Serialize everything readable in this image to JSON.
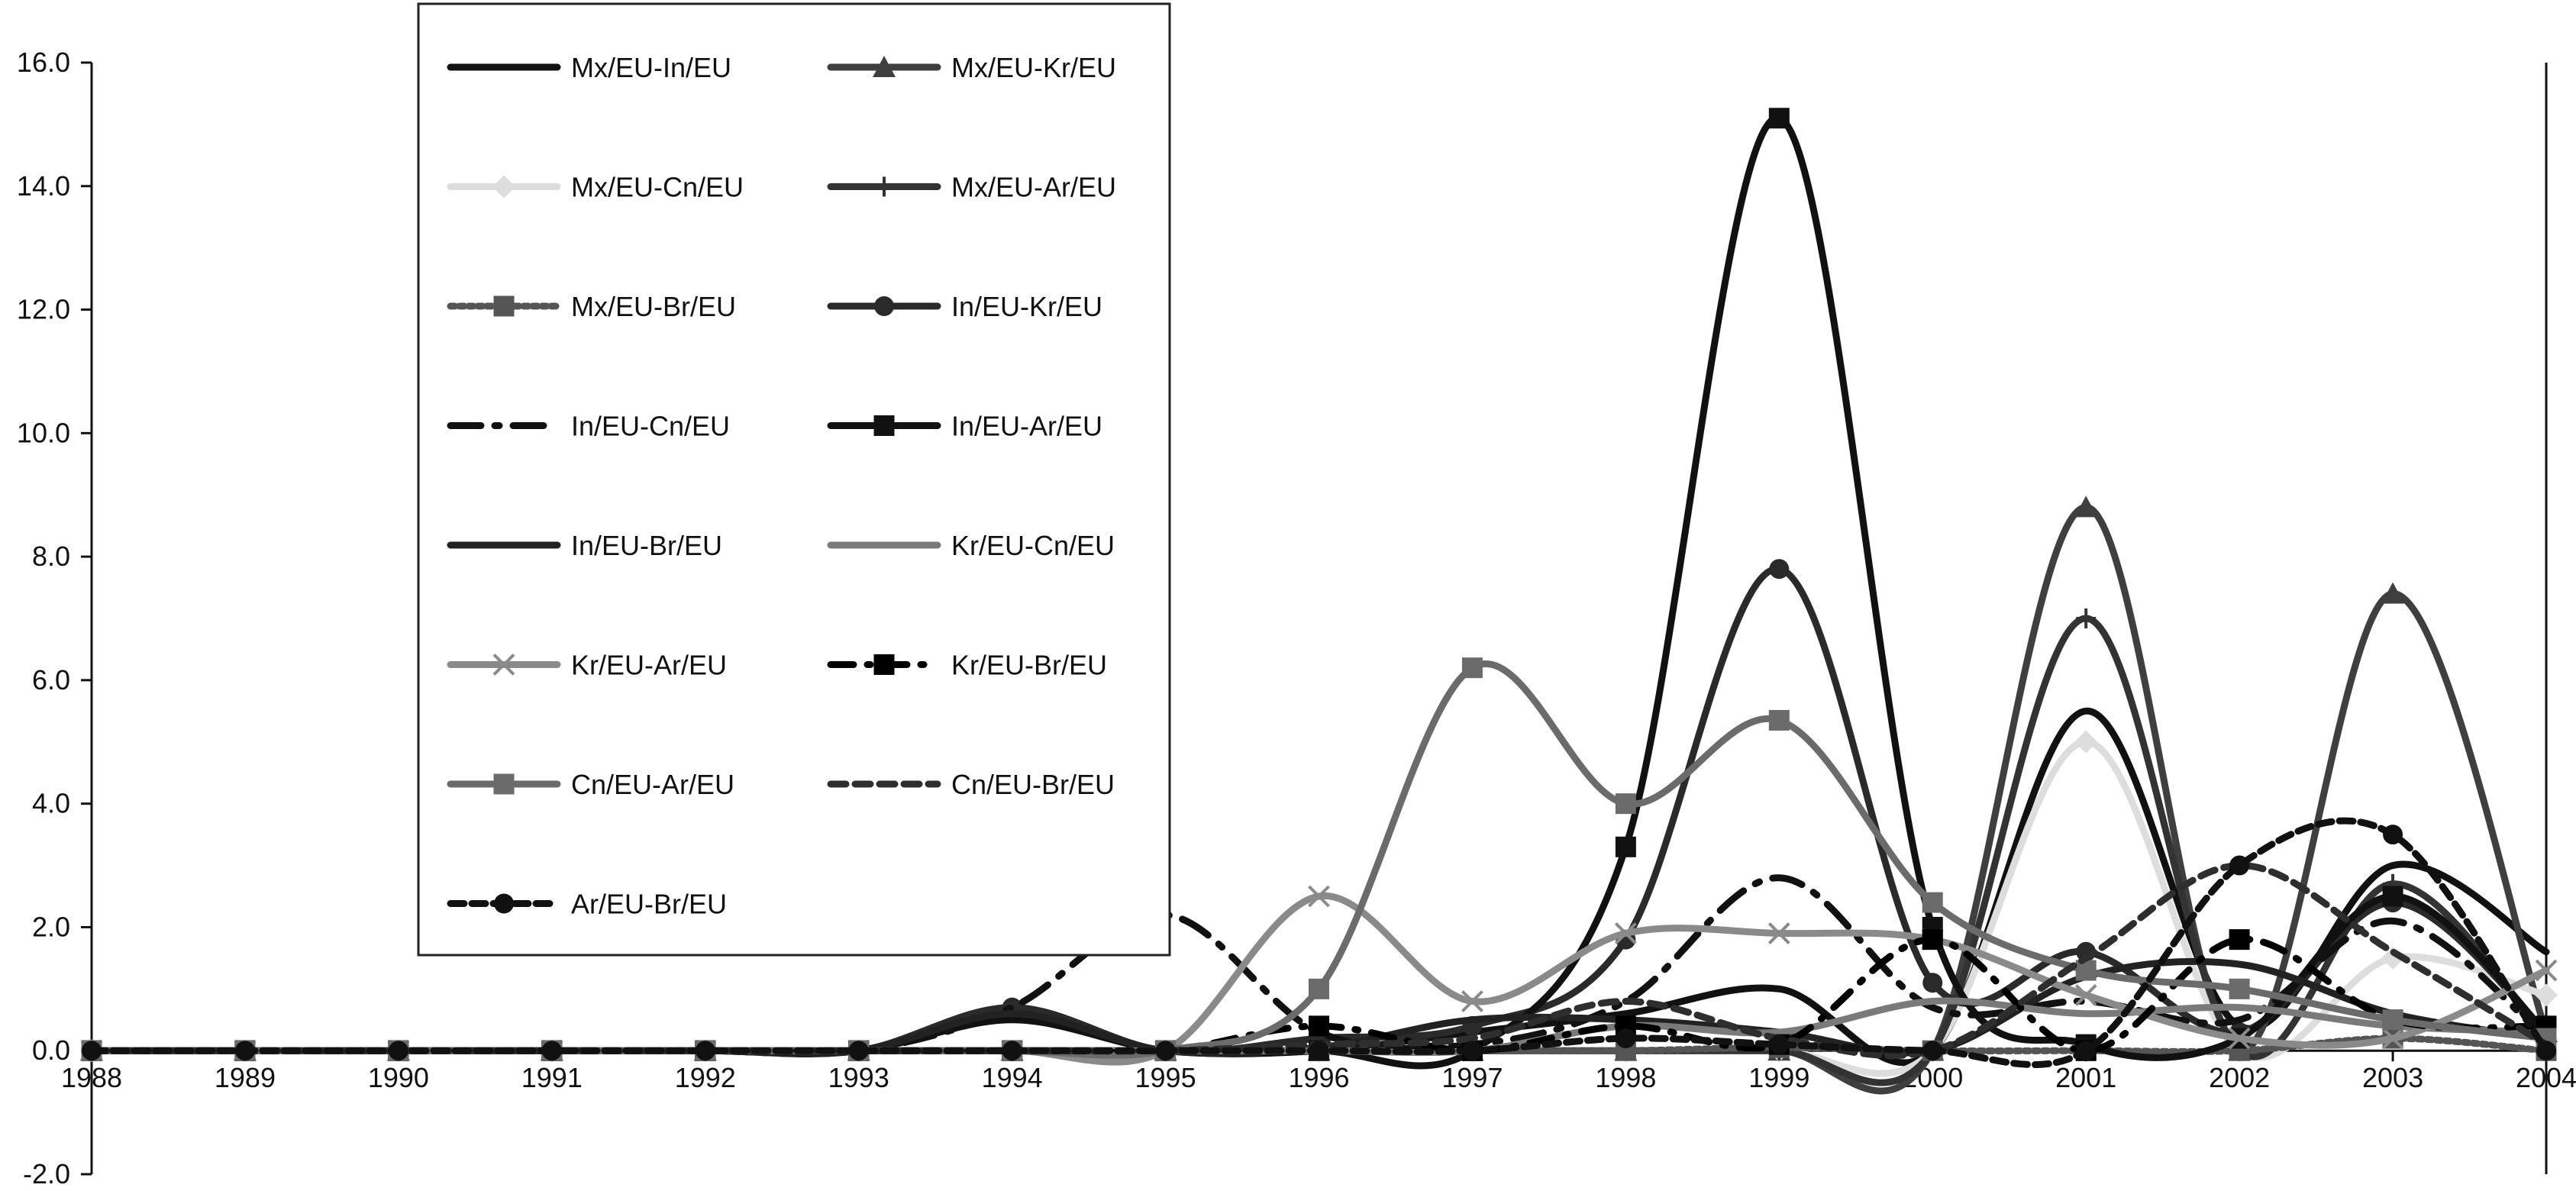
{
  "chart_data": {
    "type": "line",
    "title": "",
    "xlabel": "",
    "ylabel": "",
    "x": [
      "1988",
      "1989",
      "1990",
      "1991",
      "1992",
      "1993",
      "1994",
      "1995",
      "1996",
      "1997",
      "1998",
      "1999",
      "2000",
      "2001",
      "2002",
      "2003",
      "2004"
    ],
    "ylim": [
      -2.0,
      16.0
    ],
    "yticks": [
      "-2.0",
      "0.0",
      "2.0",
      "4.0",
      "6.0",
      "8.0",
      "10.0",
      "12.0",
      "14.0",
      "16.0"
    ],
    "grid": false,
    "legend_position": "top-left",
    "series": [
      {
        "name": "Mx/EU-In/EU",
        "color": "#111111",
        "dash": "",
        "marker": "none",
        "values": [
          0,
          0,
          0,
          0,
          0,
          0,
          0.5,
          0,
          0,
          0.3,
          0.6,
          1.0,
          0,
          5.5,
          0.4,
          3.0,
          1.6
        ]
      },
      {
        "name": "Mx/EU-Kr/EU",
        "color": "#3f3f3f",
        "dash": "",
        "marker": "triangle",
        "values": [
          0,
          0,
          0,
          0,
          0,
          0,
          0,
          0,
          0,
          0,
          0,
          0,
          0,
          8.8,
          0,
          7.4,
          0.3
        ]
      },
      {
        "name": "Mx/EU-Cn/EU",
        "color": "#dddddd",
        "dash": "",
        "marker": "diamond",
        "values": [
          0,
          0,
          0,
          0,
          0,
          0,
          0,
          0,
          0,
          0,
          0,
          0,
          0,
          5.0,
          0,
          1.5,
          0.9
        ]
      },
      {
        "name": "Mx/EU-Ar/EU",
        "color": "#333333",
        "dash": "",
        "marker": "plus",
        "values": [
          0,
          0,
          0,
          0,
          0,
          0,
          0,
          0,
          0,
          0,
          0,
          0,
          0,
          7.0,
          0,
          2.7,
          0.2
        ]
      },
      {
        "name": "Mx/EU-Br/EU",
        "color": "#555555",
        "dash": "6,6",
        "marker": "square",
        "values": [
          0,
          0,
          0,
          0,
          0,
          0,
          0,
          0,
          0,
          0,
          0,
          0.05,
          0,
          0,
          0,
          0.2,
          0
        ]
      },
      {
        "name": "In/EU-Kr/EU",
        "color": "#2a2a2a",
        "dash": "",
        "marker": "circle",
        "values": [
          0,
          0,
          0,
          0,
          0,
          0,
          0.7,
          0,
          0.2,
          0.4,
          1.8,
          7.8,
          1.1,
          1.6,
          0.3,
          2.4,
          0.3
        ]
      },
      {
        "name": "In/EU-Cn/EU",
        "color": "#111111",
        "dash": "40,18,6,18",
        "marker": "none",
        "values": [
          0,
          0,
          0,
          0,
          0,
          0,
          0.7,
          2.2,
          0.3,
          0.1,
          0.8,
          2.8,
          0.7,
          0.8,
          0.5,
          2.1,
          0.2
        ]
      },
      {
        "name": "In/EU-Ar/EU",
        "color": "#111111",
        "dash": "",
        "marker": "square",
        "values": [
          0,
          0,
          0,
          0,
          0,
          0,
          0,
          0,
          0,
          0,
          3.3,
          15.1,
          2.0,
          0.1,
          0.2,
          2.5,
          0.3
        ]
      },
      {
        "name": "In/EU-Br/EU",
        "color": "#222222",
        "dash": "",
        "marker": "none",
        "values": [
          0,
          0,
          0,
          0,
          0,
          0,
          0.6,
          0,
          0.05,
          0.5,
          0.5,
          0.3,
          0,
          1.2,
          1.4,
          0.6,
          0.2
        ]
      },
      {
        "name": "Kr/EU-Cn/EU",
        "color": "#7a7a7a",
        "dash": "",
        "marker": "none",
        "values": [
          0,
          0,
          0,
          0,
          0,
          0,
          0,
          0,
          0,
          0,
          0.4,
          0.3,
          0.8,
          0.6,
          0.7,
          0.4,
          0.3
        ]
      },
      {
        "name": "Kr/EU-Ar/EU",
        "color": "#8a8a8a",
        "dash": "",
        "marker": "x",
        "values": [
          0,
          0,
          0,
          0,
          0,
          0,
          0,
          0,
          2.5,
          0.8,
          1.9,
          1.9,
          1.8,
          0.9,
          0.2,
          0.2,
          1.3
        ]
      },
      {
        "name": "Kr/EU-Br/EU",
        "color": "#000000",
        "dash": "30,18,4,18",
        "marker": "square",
        "values": [
          0,
          0,
          0,
          0,
          0,
          0,
          0,
          0,
          0.4,
          0,
          0.4,
          0.1,
          1.8,
          0,
          1.8,
          0.5,
          0.4
        ]
      },
      {
        "name": "Cn/EU-Ar/EU",
        "color": "#6b6b6b",
        "dash": "",
        "marker": "square",
        "values": [
          0,
          0,
          0,
          0,
          0,
          0,
          0,
          0,
          1.0,
          6.2,
          4.0,
          5.35,
          2.4,
          1.3,
          1.0,
          0.5,
          0.2
        ]
      },
      {
        "name": "Cn/EU-Br/EU",
        "color": "#2e2e2e",
        "dash": "20,12",
        "marker": "none",
        "values": [
          0,
          0,
          0,
          0,
          0,
          0,
          0,
          0,
          0.1,
          0.2,
          0.8,
          0.2,
          0,
          1.5,
          3.0,
          1.6,
          0.1
        ]
      },
      {
        "name": "Ar/EU-Br/EU",
        "color": "#111111",
        "dash": "18,10",
        "marker": "circle",
        "values": [
          0,
          0,
          0,
          0,
          0,
          0,
          0,
          0,
          0,
          0,
          0.2,
          0.1,
          0,
          0,
          3.0,
          3.5,
          0
        ]
      }
    ]
  }
}
